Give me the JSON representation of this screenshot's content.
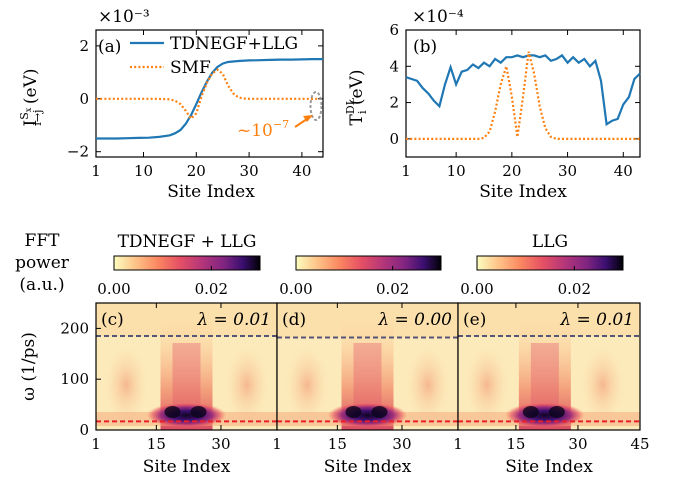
{
  "chart_data": [
    {
      "panel": "(a)",
      "type": "line",
      "scale_label": "×10⁻³",
      "xlabel": "Site Index",
      "ylabel_main": "I",
      "ylabel_sup": "S",
      "ylabel_sup_sub": "x",
      "ylabel_sub": "i→j",
      "ylabel_unit": " (eV)",
      "xlim": [
        1,
        44
      ],
      "ylim": [
        -2.2,
        2.6
      ],
      "xticks": [
        1,
        10,
        20,
        30,
        40
      ],
      "xtick_labels": [
        "1",
        "10",
        "20",
        "30",
        "40"
      ],
      "yticks": [
        -2,
        0,
        2
      ],
      "ytick_labels": [
        "−2",
        "0",
        "2"
      ],
      "annotation": "~10",
      "annotation_exp": "−7",
      "legend_position": "top-right",
      "series": [
        {
          "name": "TDNEGF+LLG",
          "color": "#1f77b4",
          "style": "solid",
          "x": [
            1,
            3,
            5,
            7,
            9,
            11,
            13,
            15,
            16,
            17,
            18,
            19,
            20,
            21,
            22,
            23,
            24,
            25,
            26,
            28,
            30,
            32,
            34,
            36,
            38,
            40,
            42,
            44
          ],
          "y": [
            -1.5,
            -1.5,
            -1.5,
            -1.49,
            -1.48,
            -1.47,
            -1.44,
            -1.38,
            -1.3,
            -1.18,
            -0.95,
            -0.62,
            -0.2,
            0.25,
            0.65,
            0.98,
            1.2,
            1.33,
            1.39,
            1.43,
            1.45,
            1.46,
            1.47,
            1.48,
            1.48,
            1.49,
            1.5,
            1.5
          ]
        },
        {
          "name": "SMF",
          "color": "#ff7f0e",
          "style": "dotted",
          "x": [
            1,
            4,
            8,
            12,
            15,
            16,
            17,
            18,
            19,
            20,
            21,
            22,
            23,
            24,
            25,
            26,
            27,
            28,
            29,
            30,
            32,
            36,
            40,
            44
          ],
          "y": [
            0,
            0,
            0,
            0,
            -0.02,
            -0.08,
            -0.2,
            -0.45,
            -0.75,
            -0.55,
            0.1,
            0.6,
            0.95,
            1.1,
            0.95,
            0.5,
            0.2,
            0.05,
            0.01,
            0,
            0,
            0,
            0,
            0
          ]
        }
      ]
    },
    {
      "panel": "(b)",
      "type": "line",
      "scale_label": "×10⁻⁴",
      "xlabel": "Site Index",
      "ylabel_main": "T",
      "ylabel_sup": "DL",
      "ylabel_sub": "i",
      "ylabel_unit": " (eV)",
      "xlim": [
        1,
        43
      ],
      "ylim": [
        -1,
        6
      ],
      "xticks": [
        1,
        10,
        20,
        30,
        40
      ],
      "xtick_labels": [
        "1",
        "10",
        "20",
        "30",
        "40"
      ],
      "yticks": [
        0,
        2,
        4,
        6
      ],
      "ytick_labels": [
        "0",
        "2",
        "4",
        "6"
      ],
      "series": [
        {
          "name": "",
          "color": "#1f77b4",
          "style": "solid",
          "x": [
            1,
            2,
            3,
            4,
            5,
            6,
            7,
            8,
            9,
            10,
            11,
            12,
            13,
            14,
            15,
            16,
            17,
            18,
            19,
            20,
            21,
            22,
            23,
            24,
            25,
            26,
            27,
            28,
            29,
            30,
            31,
            32,
            33,
            34,
            35,
            36,
            37,
            38,
            39,
            40,
            41,
            42,
            43
          ],
          "y": [
            3.4,
            3.3,
            3.2,
            2.8,
            2.5,
            2.1,
            1.8,
            3.0,
            3.95,
            3.0,
            3.7,
            3.8,
            4.1,
            3.9,
            4.2,
            4.0,
            4.4,
            4.2,
            4.5,
            4.5,
            4.6,
            4.5,
            4.6,
            4.6,
            4.5,
            4.6,
            4.3,
            4.4,
            4.6,
            4.2,
            4.5,
            4.2,
            4.4,
            4.0,
            4.3,
            3.2,
            0.8,
            1.0,
            1.1,
            1.9,
            2.3,
            3.3,
            3.6
          ]
        },
        {
          "name": "",
          "color": "#ff7f0e",
          "style": "dotted",
          "x": [
            1,
            5,
            10,
            14,
            15,
            16,
            17,
            18,
            19,
            20,
            21,
            22,
            23,
            24,
            25,
            26,
            27,
            28,
            29,
            30,
            35,
            40,
            43
          ],
          "y": [
            0,
            0,
            0,
            0,
            0.05,
            0.4,
            1.5,
            3.0,
            4.0,
            2.3,
            0.1,
            2.3,
            4.8,
            3.6,
            1.8,
            0.6,
            0.1,
            0,
            0,
            0,
            0,
            0,
            0
          ]
        }
      ]
    },
    {
      "panel": "(c)",
      "type": "heatmap",
      "group_title": "TDNEGF + LLG",
      "annotation": "λ = 0.01",
      "xlabel": "Site Index",
      "ylabel": "ω (1/ps)",
      "xlim": [
        1,
        43
      ],
      "ylim": [
        0,
        250
      ],
      "xtick_labels": [
        "1",
        "15",
        "30"
      ],
      "xticks": [
        1,
        15,
        30
      ],
      "yticks": [
        0,
        100,
        200
      ],
      "ytick_labels": [
        "0",
        "100",
        "200"
      ],
      "colorbar_ticks": [
        "0.00",
        "0.02"
      ],
      "colorbar_values": [
        0.0,
        0.02
      ],
      "colorbar_max": 0.03,
      "hlines": [
        {
          "y": 185,
          "color": "#555577"
        },
        {
          "y": 17,
          "color": "#e8202a"
        }
      ]
    },
    {
      "panel": "(d)",
      "type": "heatmap",
      "annotation": "λ = 0.00",
      "xlabel": "Site Index",
      "xlim": [
        1,
        43
      ],
      "ylim": [
        0,
        250
      ],
      "xtick_labels": [
        "1",
        "15",
        "30"
      ],
      "xticks": [
        1,
        15,
        30
      ],
      "colorbar_ticks": [
        "0.00",
        "0.02"
      ],
      "colorbar_values": [
        0.0,
        0.02
      ],
      "colorbar_max": 0.03,
      "hlines": [
        {
          "y": 182,
          "color": "#555577"
        },
        {
          "y": 17,
          "color": "#e8202a"
        }
      ]
    },
    {
      "panel": "(e)",
      "type": "heatmap",
      "group_title": "LLG",
      "annotation": "λ = 0.01",
      "xlabel": "Site Index",
      "xlim": [
        1,
        45
      ],
      "ylim": [
        0,
        250
      ],
      "xtick_labels": [
        "1",
        "15",
        "30",
        "45"
      ],
      "xticks": [
        1,
        15,
        30,
        45
      ],
      "colorbar_ticks": [
        "0.00",
        "0.02"
      ],
      "colorbar_values": [
        0.0,
        0.02
      ],
      "colorbar_max": 0.03,
      "hlines": [
        {
          "y": 185,
          "color": "#555577"
        },
        {
          "y": 17,
          "color": "#e8202a"
        }
      ]
    }
  ],
  "colorbar_side_label": [
    "FFT",
    "power",
    "(a.u.)"
  ]
}
